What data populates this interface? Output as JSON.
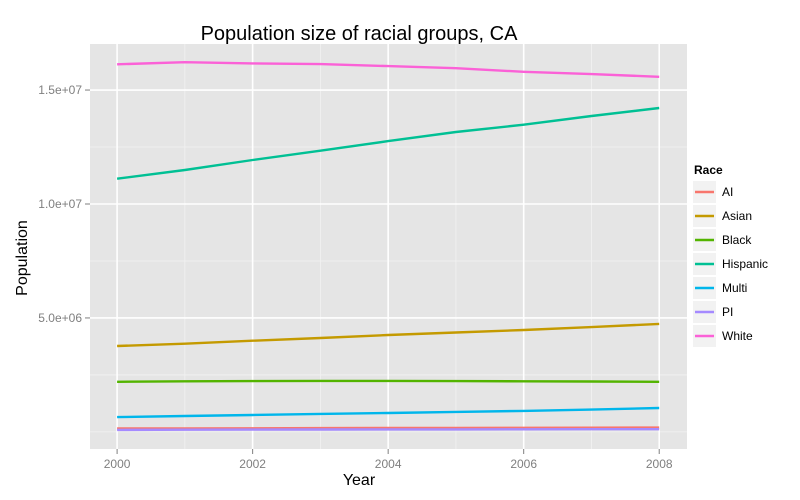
{
  "chart_data": {
    "type": "line",
    "title": "Population size of racial groups, CA",
    "xlabel": "Year",
    "ylabel": "Population",
    "x": [
      2000,
      2001,
      2002,
      2003,
      2004,
      2005,
      2006,
      2007,
      2008
    ],
    "xlim": [
      1999.6,
      2008.41
    ],
    "ylim": [
      -750000,
      17020000
    ],
    "x_ticks": [
      2000,
      2002,
      2004,
      2006,
      2008
    ],
    "x_tick_labels": [
      "2000",
      "2002",
      "2004",
      "2006",
      "2008"
    ],
    "x_minor_ticks": [
      2001,
      2003,
      2005,
      2007
    ],
    "y_ticks": [
      5000000,
      10000000,
      15000000
    ],
    "y_tick_labels": [
      "5.0e+06",
      "1.0e+07",
      "1.5e+07"
    ],
    "y_minor_ticks": [
      0,
      2500000,
      7500000,
      12500000
    ],
    "grid": true,
    "legend": {
      "title": "Race",
      "position": "right"
    },
    "series": [
      {
        "name": "AI",
        "color": "#F8766D",
        "values": [
          150000,
          155000,
          160000,
          165000,
          170000,
          175000,
          180000,
          185000,
          190000
        ]
      },
      {
        "name": "Asian",
        "color": "#C49A00",
        "values": [
          3770000,
          3870000,
          4000000,
          4120000,
          4250000,
          4360000,
          4470000,
          4600000,
          4740000
        ]
      },
      {
        "name": "Black",
        "color": "#53B400",
        "values": [
          2200000,
          2220000,
          2230000,
          2240000,
          2240000,
          2230000,
          2220000,
          2210000,
          2200000
        ]
      },
      {
        "name": "Hispanic",
        "color": "#00C094",
        "values": [
          11110000,
          11490000,
          11930000,
          12340000,
          12760000,
          13160000,
          13480000,
          13860000,
          14210000
        ]
      },
      {
        "name": "Multi",
        "color": "#00B6EB",
        "values": [
          650000,
          700000,
          740000,
          790000,
          830000,
          880000,
          920000,
          980000,
          1050000
        ]
      },
      {
        "name": "PI",
        "color": "#A58AFF",
        "values": [
          90000,
          95000,
          100000,
          105000,
          110000,
          112000,
          115000,
          118000,
          120000
        ]
      },
      {
        "name": "White",
        "color": "#FB61D7",
        "values": [
          16130000,
          16220000,
          16170000,
          16140000,
          16050000,
          15960000,
          15800000,
          15700000,
          15580000
        ]
      }
    ]
  }
}
